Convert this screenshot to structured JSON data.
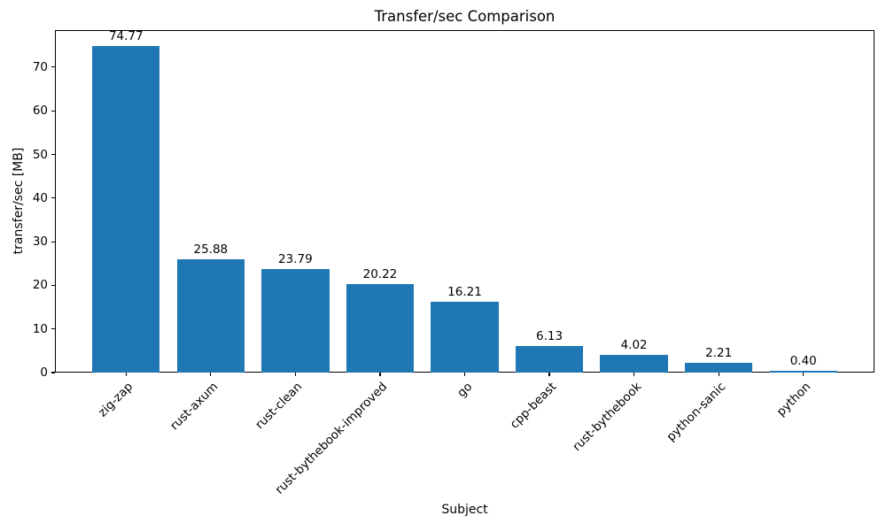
{
  "chart_data": {
    "type": "bar",
    "title": "Transfer/sec Comparison",
    "xlabel": "Subject",
    "ylabel": "transfer/sec [MB]",
    "categories": [
      "zig-zap",
      "rust-axum",
      "rust-clean",
      "rust-bythebook-improved",
      "go",
      "cpp-beast",
      "rust-bythebook",
      "python-sanic",
      "python"
    ],
    "values": [
      74.77,
      25.88,
      23.79,
      20.22,
      16.21,
      6.13,
      4.02,
      2.21,
      0.4
    ],
    "value_labels": [
      "74.77",
      "25.88",
      "23.79",
      "20.22",
      "16.21",
      "6.13",
      "4.02",
      "2.21",
      "0.40"
    ],
    "yticks": [
      0,
      10,
      20,
      30,
      40,
      50,
      60,
      70
    ],
    "ylim": [
      0,
      78.5
    ],
    "bar_color": "#1f77b4",
    "grid": false,
    "legend": null,
    "x_tick_rotation": 45,
    "bar_width_fraction": 0.8
  }
}
